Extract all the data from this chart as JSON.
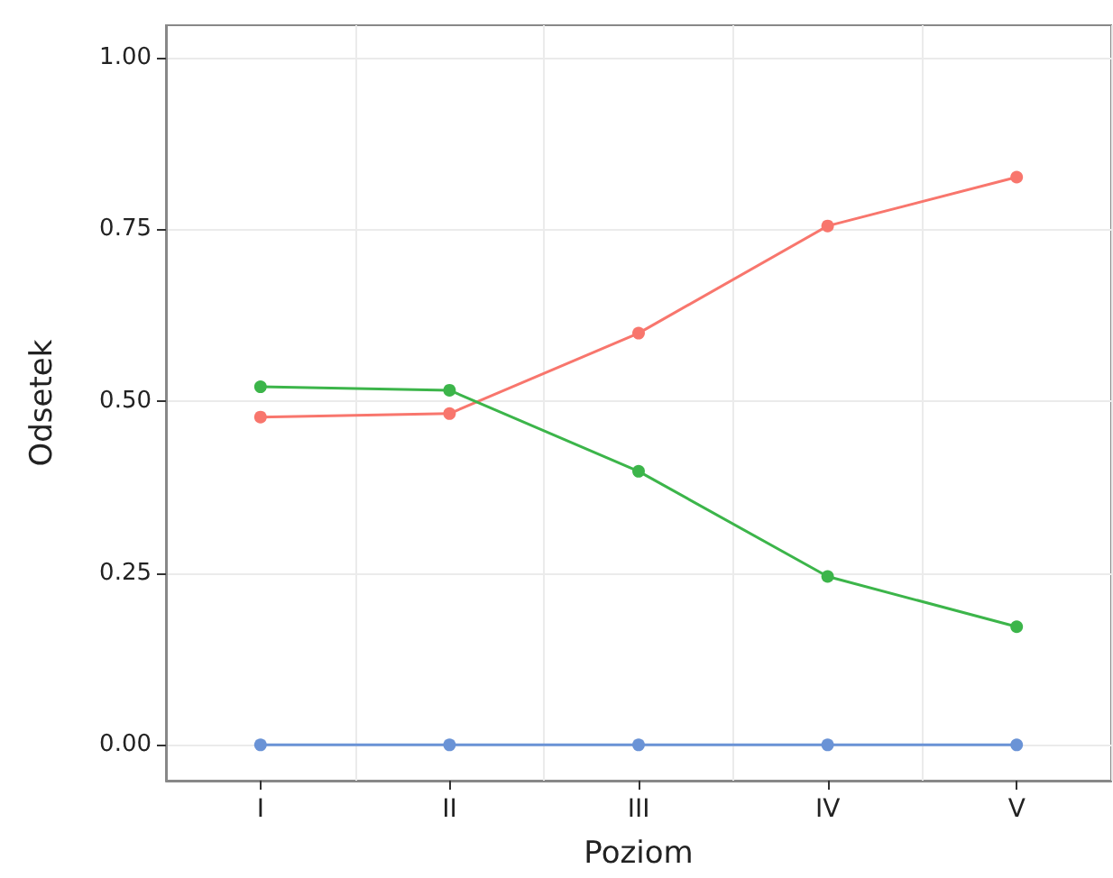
{
  "chart_data": {
    "type": "line",
    "xlabel": "Poziom",
    "ylabel": "Odsetek",
    "categories": [
      "I",
      "II",
      "III",
      "IV",
      "V"
    ],
    "series": [
      {
        "color": "#f8766d",
        "values": [
          0.477,
          0.482,
          0.599,
          0.755,
          0.826
        ]
      },
      {
        "color": "#3cb54a",
        "values": [
          0.521,
          0.516,
          0.398,
          0.245,
          0.172
        ]
      },
      {
        "color": "#6a93d6",
        "values": [
          0,
          0,
          0,
          0,
          0
        ]
      }
    ],
    "ylim": [
      -0.052,
      1.047
    ],
    "yticks": [
      {
        "value": 0,
        "label": "0.00"
      },
      {
        "value": 0.25,
        "label": "0.25"
      },
      {
        "value": 0.5,
        "label": "0.50"
      },
      {
        "value": 0.75,
        "label": "0.75"
      },
      {
        "value": 1,
        "label": "1.00"
      }
    ],
    "grid": true,
    "marker": "circle",
    "line_style": "solid"
  }
}
